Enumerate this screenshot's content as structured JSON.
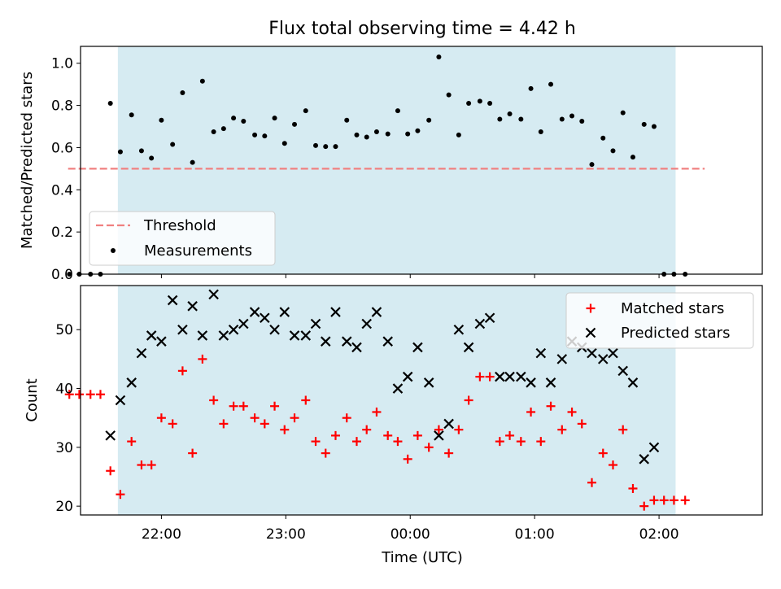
{
  "chart_data": {
    "title": "Flux total observing time = 4.42 h",
    "type": "scatter",
    "xlabel": "Time (UTC)",
    "x_ticks": [
      "22:00",
      "23:00",
      "00:00",
      "01:00",
      "02:00"
    ],
    "x_unit": "hours since 21:00 UTC",
    "xlim": [
      0.35,
      5.83
    ],
    "x_tick_values": [
      1.0,
      2.0,
      3.0,
      4.0,
      5.0
    ],
    "observing_window": {
      "start": "21:39",
      "end": "02:08",
      "color": "#add8e6"
    },
    "top": {
      "ylabel": "Matched/Predicted stars",
      "ylim": [
        0,
        1.08
      ],
      "y_ticks": [
        "0.0",
        "0.2",
        "0.4",
        "0.6",
        "0.8",
        "1.0"
      ],
      "y_tick_values": [
        0.0,
        0.2,
        0.4,
        0.6,
        0.8,
        1.0
      ],
      "threshold": {
        "name": "Threshold",
        "value": 0.5,
        "x_start": "21:15",
        "x_end": "02:22",
        "color": "#f08080"
      },
      "measurements_name": "Measurements",
      "measurements": [
        [
          0.26,
          0.0
        ],
        [
          0.34,
          0.0
        ],
        [
          0.43,
          0.0
        ],
        [
          0.51,
          0.0
        ],
        [
          0.59,
          0.81
        ],
        [
          0.67,
          0.58
        ],
        [
          0.76,
          0.755
        ],
        [
          0.84,
          0.585
        ],
        [
          0.92,
          0.55
        ],
        [
          1.0,
          0.73
        ],
        [
          1.09,
          0.615
        ],
        [
          1.17,
          0.86
        ],
        [
          1.25,
          0.53
        ],
        [
          1.33,
          0.915
        ],
        [
          1.42,
          0.675
        ],
        [
          1.5,
          0.69
        ],
        [
          1.58,
          0.74
        ],
        [
          1.66,
          0.725
        ],
        [
          1.75,
          0.66
        ],
        [
          1.83,
          0.655
        ],
        [
          1.91,
          0.74
        ],
        [
          1.99,
          0.62
        ],
        [
          2.07,
          0.71
        ],
        [
          2.16,
          0.775
        ],
        [
          2.24,
          0.61
        ],
        [
          2.32,
          0.605
        ],
        [
          2.4,
          0.605
        ],
        [
          2.49,
          0.73
        ],
        [
          2.57,
          0.66
        ],
        [
          2.65,
          0.65
        ],
        [
          2.73,
          0.675
        ],
        [
          2.82,
          0.665
        ],
        [
          2.9,
          0.775
        ],
        [
          2.98,
          0.665
        ],
        [
          3.06,
          0.68
        ],
        [
          3.15,
          0.73
        ],
        [
          3.23,
          1.03
        ],
        [
          3.31,
          0.85
        ],
        [
          3.39,
          0.66
        ],
        [
          3.47,
          0.81
        ],
        [
          3.56,
          0.82
        ],
        [
          3.64,
          0.81
        ],
        [
          3.72,
          0.735
        ],
        [
          3.8,
          0.76
        ],
        [
          3.89,
          0.735
        ],
        [
          3.97,
          0.88
        ],
        [
          4.05,
          0.675
        ],
        [
          4.13,
          0.9
        ],
        [
          4.22,
          0.735
        ],
        [
          4.3,
          0.75
        ],
        [
          4.38,
          0.725
        ],
        [
          4.46,
          0.52
        ],
        [
          4.55,
          0.645
        ],
        [
          4.63,
          0.585
        ],
        [
          4.71,
          0.765
        ],
        [
          4.79,
          0.555
        ],
        [
          4.88,
          0.71
        ],
        [
          4.96,
          0.7
        ],
        [
          5.04,
          0.0
        ],
        [
          5.12,
          0.0
        ],
        [
          5.21,
          0.0
        ]
      ],
      "legend_position": "lower left"
    },
    "bottom": {
      "ylabel": "Count",
      "ylim": [
        18.5,
        57.5
      ],
      "y_ticks": [
        "20",
        "30",
        "40",
        "50"
      ],
      "y_tick_values": [
        20,
        30,
        40,
        50
      ],
      "legend_position": "upper right",
      "series": [
        {
          "name": "Matched stars",
          "color": "#ff0000",
          "marker": "plus",
          "points": [
            [
              0.26,
              39
            ],
            [
              0.34,
              39
            ],
            [
              0.43,
              39
            ],
            [
              0.51,
              39
            ],
            [
              0.59,
              26
            ],
            [
              0.67,
              22
            ],
            [
              0.76,
              31
            ],
            [
              0.84,
              27
            ],
            [
              0.92,
              27
            ],
            [
              1.0,
              35
            ],
            [
              1.09,
              34
            ],
            [
              1.17,
              43
            ],
            [
              1.25,
              29
            ],
            [
              1.33,
              45
            ],
            [
              1.42,
              38
            ],
            [
              1.5,
              34
            ],
            [
              1.58,
              37
            ],
            [
              1.66,
              37
            ],
            [
              1.75,
              35
            ],
            [
              1.83,
              34
            ],
            [
              1.91,
              37
            ],
            [
              1.99,
              33
            ],
            [
              2.07,
              35
            ],
            [
              2.16,
              38
            ],
            [
              2.24,
              31
            ],
            [
              2.32,
              29
            ],
            [
              2.4,
              32
            ],
            [
              2.49,
              35
            ],
            [
              2.57,
              31
            ],
            [
              2.65,
              33
            ],
            [
              2.73,
              36
            ],
            [
              2.82,
              32
            ],
            [
              2.9,
              31
            ],
            [
              2.98,
              28
            ],
            [
              3.06,
              32
            ],
            [
              3.15,
              30
            ],
            [
              3.23,
              33
            ],
            [
              3.31,
              29
            ],
            [
              3.39,
              33
            ],
            [
              3.47,
              38
            ],
            [
              3.56,
              42
            ],
            [
              3.64,
              42
            ],
            [
              3.72,
              31
            ],
            [
              3.8,
              32
            ],
            [
              3.89,
              31
            ],
            [
              3.97,
              36
            ],
            [
              4.05,
              31
            ],
            [
              4.13,
              37
            ],
            [
              4.22,
              33
            ],
            [
              4.3,
              36
            ],
            [
              4.38,
              34
            ],
            [
              4.46,
              24
            ],
            [
              4.55,
              29
            ],
            [
              4.63,
              27
            ],
            [
              4.71,
              33
            ],
            [
              4.79,
              23
            ],
            [
              4.88,
              20
            ],
            [
              4.96,
              21
            ],
            [
              5.04,
              21
            ],
            [
              5.12,
              21
            ],
            [
              5.21,
              21
            ]
          ]
        },
        {
          "name": "Predicted stars",
          "color": "#000000",
          "marker": "x",
          "points": [
            [
              0.59,
              32
            ],
            [
              0.67,
              38
            ],
            [
              0.76,
              41
            ],
            [
              0.84,
              46
            ],
            [
              0.92,
              49
            ],
            [
              1.0,
              48
            ],
            [
              1.09,
              55
            ],
            [
              1.17,
              50
            ],
            [
              1.25,
              54
            ],
            [
              1.33,
              49
            ],
            [
              1.42,
              56
            ],
            [
              1.5,
              49
            ],
            [
              1.58,
              50
            ],
            [
              1.66,
              51
            ],
            [
              1.75,
              53
            ],
            [
              1.83,
              52
            ],
            [
              1.91,
              50
            ],
            [
              1.99,
              53
            ],
            [
              2.07,
              49
            ],
            [
              2.16,
              49
            ],
            [
              2.24,
              51
            ],
            [
              2.32,
              48
            ],
            [
              2.4,
              53
            ],
            [
              2.49,
              48
            ],
            [
              2.57,
              47
            ],
            [
              2.65,
              51
            ],
            [
              2.73,
              53
            ],
            [
              2.82,
              48
            ],
            [
              2.9,
              40
            ],
            [
              2.98,
              42
            ],
            [
              3.06,
              47
            ],
            [
              3.15,
              41
            ],
            [
              3.23,
              32
            ],
            [
              3.31,
              34
            ],
            [
              3.39,
              50
            ],
            [
              3.47,
              47
            ],
            [
              3.56,
              51
            ],
            [
              3.64,
              52
            ],
            [
              3.72,
              42
            ],
            [
              3.8,
              42
            ],
            [
              3.89,
              42
            ],
            [
              3.97,
              41
            ],
            [
              4.05,
              46
            ],
            [
              4.13,
              41
            ],
            [
              4.22,
              45
            ],
            [
              4.3,
              48
            ],
            [
              4.38,
              47
            ],
            [
              4.46,
              46
            ],
            [
              4.55,
              45
            ],
            [
              4.63,
              46
            ],
            [
              4.71,
              43
            ],
            [
              4.79,
              41
            ],
            [
              4.88,
              28
            ],
            [
              4.96,
              30
            ]
          ]
        }
      ]
    }
  }
}
